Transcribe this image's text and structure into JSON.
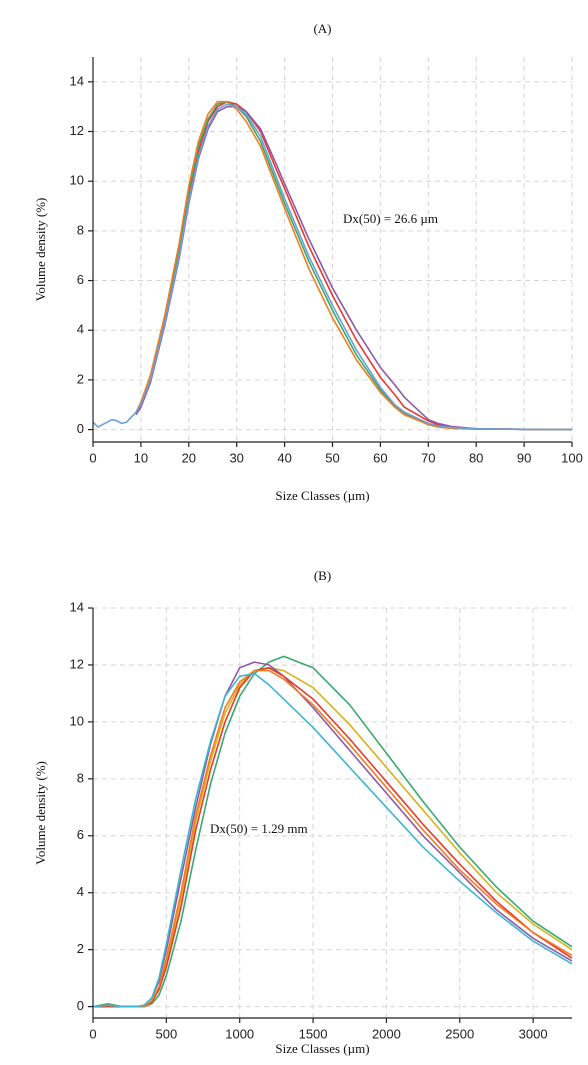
{
  "chart_data": [
    {
      "type": "line",
      "title": "(A)",
      "xlabel": "Size Classes (µm)",
      "ylabel": "Volume density (%)",
      "annotation": "Dx(50) = 26.6 µm",
      "grid": true,
      "xlim": [
        0,
        100
      ],
      "ylim": [
        -0.5,
        15
      ],
      "xticks": [
        0,
        10,
        20,
        30,
        40,
        50,
        60,
        70,
        80,
        90,
        100
      ],
      "yticks": [
        0,
        2,
        4,
        6,
        8,
        10,
        12,
        14
      ],
      "x": [
        0,
        1,
        2,
        3,
        4,
        5,
        6,
        7,
        8,
        9,
        10,
        12,
        15,
        18,
        20,
        22,
        24,
        26,
        28,
        30,
        32,
        35,
        38,
        40,
        45,
        50,
        55,
        60,
        63,
        65,
        70,
        72,
        75,
        80,
        90,
        100
      ],
      "series": [
        {
          "color": "#e8392b",
          "values": [
            null,
            null,
            null,
            null,
            null,
            null,
            null,
            null,
            null,
            0.7,
            1.0,
            2.1,
            4.4,
            7.2,
            9.4,
            11.2,
            12.4,
            13.0,
            13.2,
            13.1,
            12.8,
            12.0,
            10.6,
            9.7,
            7.4,
            5.4,
            3.6,
            2.1,
            1.4,
            0.9,
            0.35,
            0.2,
            0.1,
            0.03,
            0.01,
            0
          ]
        },
        {
          "color": "#8e5aa8",
          "values": [
            null,
            null,
            null,
            null,
            null,
            null,
            null,
            null,
            null,
            0.6,
            0.9,
            1.9,
            4.2,
            6.9,
            9.1,
            10.9,
            12.1,
            12.8,
            13.0,
            13.0,
            12.8,
            12.1,
            10.8,
            9.9,
            7.7,
            5.7,
            4.0,
            2.5,
            1.8,
            1.3,
            0.4,
            0.25,
            0.12,
            0.03,
            0.01,
            0
          ]
        },
        {
          "color": "#3aa870",
          "values": [
            null,
            null,
            null,
            null,
            null,
            null,
            null,
            null,
            null,
            0.7,
            1.0,
            2.1,
            4.5,
            7.3,
            9.6,
            11.4,
            12.5,
            13.1,
            13.2,
            13.0,
            12.6,
            11.6,
            10.1,
            9.1,
            6.8,
            4.8,
            3.0,
            1.6,
            0.95,
            0.65,
            0.2,
            0.12,
            0.06,
            0.02,
            0.01,
            0
          ]
        },
        {
          "color": "#f07d1e",
          "values": [
            null,
            null,
            null,
            null,
            null,
            null,
            null,
            null,
            null,
            0.7,
            1.1,
            2.2,
            4.6,
            7.5,
            9.8,
            11.6,
            12.7,
            13.2,
            13.2,
            12.9,
            12.4,
            11.4,
            9.9,
            8.9,
            6.5,
            4.5,
            2.8,
            1.5,
            0.9,
            0.6,
            0.2,
            0.1,
            0.05,
            0.02,
            0.01,
            0
          ]
        },
        {
          "color": "#6a9fd8",
          "values": [
            0.3,
            0.1,
            0.2,
            0.3,
            0.4,
            0.35,
            0.25,
            0.3,
            0.5,
            0.7,
            1.0,
            2.0,
            4.3,
            7.0,
            9.2,
            11.0,
            12.2,
            12.9,
            13.1,
            13.0,
            12.7,
            11.8,
            10.3,
            9.3,
            7.0,
            5.0,
            3.2,
            1.7,
            1.0,
            0.7,
            0.25,
            0.15,
            0.08,
            0.03,
            0.01,
            0
          ]
        }
      ]
    },
    {
      "type": "line",
      "title": "(B)",
      "xlabel": "Size Classes (µm)",
      "ylabel": "Volume density (%)",
      "annotation": "Dx(50) = 1.29 mm",
      "grid": true,
      "xlim": [
        0,
        3265
      ],
      "ylim": [
        -0.4,
        14
      ],
      "xticks": [
        0,
        500,
        1000,
        1500,
        2000,
        2500,
        3000
      ],
      "yticks": [
        0,
        2,
        4,
        6,
        8,
        10,
        12,
        14
      ],
      "x": [
        0,
        100,
        200,
        300,
        350,
        400,
        450,
        500,
        600,
        700,
        800,
        900,
        1000,
        1100,
        1200,
        1300,
        1500,
        1750,
        2000,
        2250,
        2500,
        2750,
        3000,
        3265
      ],
      "series": [
        {
          "color": "#3aa870",
          "values": [
            0,
            0.1,
            0,
            0,
            0,
            0.1,
            0.4,
            1.1,
            3.0,
            5.5,
            7.8,
            9.6,
            10.9,
            11.7,
            12.1,
            12.3,
            11.9,
            10.6,
            8.9,
            7.2,
            5.6,
            4.2,
            3.0,
            2.1
          ]
        },
        {
          "color": "#d8b21e",
          "values": [
            0,
            0,
            0,
            0,
            0,
            0.15,
            0.6,
            1.5,
            3.8,
            6.5,
            8.6,
            10.3,
            11.3,
            11.8,
            11.9,
            11.8,
            11.2,
            9.9,
            8.4,
            6.9,
            5.4,
            4.0,
            2.9,
            2.0
          ]
        },
        {
          "color": "#8e5aa8",
          "values": [
            0,
            0,
            0,
            0,
            0.05,
            0.3,
            0.9,
            2.0,
            4.5,
            7.0,
            9.2,
            10.9,
            11.9,
            12.1,
            12.0,
            11.6,
            10.5,
            9.0,
            7.5,
            6.0,
            4.7,
            3.4,
            2.4,
            1.6
          ]
        },
        {
          "color": "#e8392b",
          "values": [
            0,
            0,
            0,
            0,
            0,
            0.15,
            0.6,
            1.4,
            3.5,
            6.2,
            8.3,
            10.0,
            11.2,
            11.8,
            11.9,
            11.6,
            10.8,
            9.4,
            7.9,
            6.4,
            5.0,
            3.7,
            2.6,
            1.7
          ]
        },
        {
          "color": "#f07d1e",
          "values": [
            0,
            0.05,
            0,
            0,
            0,
            0.2,
            0.7,
            1.7,
            4.0,
            6.7,
            8.8,
            10.5,
            11.4,
            11.8,
            11.8,
            11.5,
            10.6,
            9.2,
            7.7,
            6.2,
            4.8,
            3.6,
            2.6,
            1.8
          ]
        },
        {
          "color": "#3cb6d0",
          "values": [
            0,
            0.05,
            0,
            0,
            0.05,
            0.3,
            1.0,
            2.2,
            4.8,
            7.3,
            9.3,
            10.9,
            11.6,
            11.7,
            11.3,
            10.8,
            9.8,
            8.4,
            7.0,
            5.6,
            4.4,
            3.3,
            2.3,
            1.5
          ]
        }
      ]
    }
  ]
}
